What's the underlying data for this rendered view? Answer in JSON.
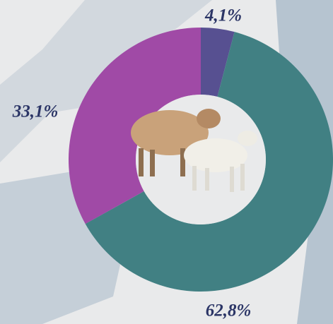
{
  "chart_data": {
    "type": "donut",
    "values": [
      4.1,
      62.8,
      33.1
    ],
    "value_labels": [
      "4,1%",
      "62,8%",
      "33,1%"
    ],
    "colors": [
      "#575091",
      "#418083",
      "#a04aa6"
    ]
  }
}
